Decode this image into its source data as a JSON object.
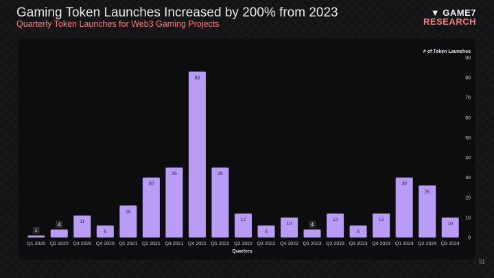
{
  "header": {
    "title": "Gaming Token Launches Increased by 200% from 2023",
    "subtitle": "Quarterly Token Launches for Web3 Gaming Projects"
  },
  "logo": {
    "line1": "GAME7",
    "line2": "RESEARCH"
  },
  "colors": {
    "accent": "#ff7a7a",
    "bar": "#b89cf5",
    "background": "#141416",
    "panel": "#0d0d0f"
  },
  "page_number": "51",
  "chart_data": {
    "type": "bar",
    "categories": [
      "Q1 2020",
      "Q2 2020",
      "Q3 2020",
      "Q4 2020",
      "Q1 2021",
      "Q2 2021",
      "Q3 2021",
      "Q4 2021",
      "Q1 2022",
      "Q2 2022",
      "Q3 2022",
      "Q4 2022",
      "Q1 2023",
      "Q2 2023",
      "Q3 2023",
      "Q4 2023",
      "Q1 2024",
      "Q2 2024",
      "Q3 2024"
    ],
    "values": [
      1,
      4,
      11,
      6,
      16,
      30,
      35,
      83,
      35,
      12,
      6,
      10,
      4,
      12,
      6,
      12,
      30,
      26,
      10
    ],
    "xlabel": "Quarters",
    "ylabel": "# of Token Launches",
    "ylim": [
      0,
      90
    ],
    "yticks": [
      0,
      10,
      20,
      30,
      40,
      50,
      60,
      70,
      80,
      90
    ],
    "y_axis_position": "right",
    "grid": false,
    "legend": "none"
  }
}
